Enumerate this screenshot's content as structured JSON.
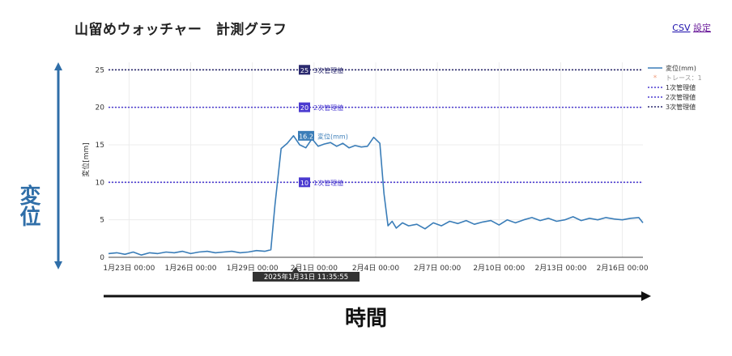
{
  "header": {
    "title": "山留めウォッチャー　計測グラフ",
    "links": {
      "csv": "CSV",
      "settings": "設定"
    }
  },
  "annotations": {
    "y_big_label": "変位",
    "x_big_label": "時間"
  },
  "tooltip": {
    "hover_x_label": "2025年1月31日 11:35:55"
  },
  "colors": {
    "series": "#3a7db8",
    "threshold": "#4b3bd0",
    "threshold_dark": "#2b2a6e",
    "big_arrow_vertical": "#2f6ea8",
    "big_arrow_horizontal": "#111111",
    "grid": "#ececec"
  },
  "chart_data": {
    "type": "line",
    "ylabel": "変位[mm]",
    "ylim": [
      0,
      26
    ],
    "xlim": [
      0,
      26
    ],
    "yticks": [
      0,
      5,
      10,
      15,
      20,
      25
    ],
    "x_ticks": [
      {
        "x": 1,
        "label": "1月23日 00:00"
      },
      {
        "x": 4,
        "label": "1月26日 00:00"
      },
      {
        "x": 7,
        "label": "1月29日 00:00"
      },
      {
        "x": 10,
        "label": "2月1日 00:00"
      },
      {
        "x": 13,
        "label": "2月4日 00:00"
      },
      {
        "x": 16,
        "label": "2月7日 00:00"
      },
      {
        "x": 19,
        "label": "2月10日 00:00"
      },
      {
        "x": 22,
        "label": "2月13日 00:00"
      },
      {
        "x": 25,
        "label": "2月16日 00:00"
      }
    ],
    "grid": true,
    "legend_position": "top-right",
    "legend": [
      {
        "label": "変位(mm)",
        "style": "line"
      },
      {
        "label": "トレース：1",
        "style": "marker"
      },
      {
        "label": "1次管理値",
        "style": "dotted-1"
      },
      {
        "label": "2次管理値",
        "style": "dotted-2"
      },
      {
        "label": "3次管理値",
        "style": "dotted-3"
      }
    ],
    "thresholds": [
      {
        "name": "1次管理値",
        "value": 10
      },
      {
        "name": "2次管理値",
        "value": 20
      },
      {
        "name": "3次管理値",
        "value": 25
      }
    ],
    "series": [
      {
        "name": "変位(mm)",
        "x": [
          0,
          0.4,
          0.8,
          1.2,
          1.6,
          2.0,
          2.4,
          2.8,
          3.2,
          3.6,
          4.0,
          4.4,
          4.8,
          5.2,
          5.6,
          6.0,
          6.4,
          6.8,
          7.2,
          7.6,
          7.9,
          8.1,
          8.4,
          8.7,
          9.0,
          9.3,
          9.6,
          9.9,
          10.2,
          10.5,
          10.8,
          11.1,
          11.4,
          11.7,
          12.0,
          12.3,
          12.6,
          12.9,
          13.2,
          13.4,
          13.6,
          13.8,
          14.0,
          14.3,
          14.6,
          15.0,
          15.4,
          15.8,
          16.2,
          16.6,
          17.0,
          17.4,
          17.8,
          18.2,
          18.6,
          19.0,
          19.4,
          19.8,
          20.2,
          20.6,
          21.0,
          21.4,
          21.8,
          22.2,
          22.6,
          23.0,
          23.4,
          23.8,
          24.2,
          24.6,
          25.0,
          25.4,
          25.8,
          26.0
        ],
        "values": [
          0.5,
          0.6,
          0.4,
          0.7,
          0.3,
          0.6,
          0.5,
          0.7,
          0.6,
          0.8,
          0.5,
          0.7,
          0.8,
          0.6,
          0.7,
          0.8,
          0.6,
          0.7,
          0.9,
          0.8,
          1.0,
          7.0,
          14.5,
          15.2,
          16.2,
          15.0,
          14.6,
          15.8,
          14.8,
          15.1,
          15.3,
          14.8,
          15.2,
          14.6,
          14.9,
          14.7,
          14.8,
          16.0,
          15.2,
          8.5,
          4.2,
          4.8,
          3.9,
          4.6,
          4.2,
          4.4,
          3.8,
          4.6,
          4.2,
          4.8,
          4.5,
          4.9,
          4.4,
          4.7,
          4.9,
          4.3,
          5.0,
          4.6,
          5.0,
          5.3,
          4.9,
          5.2,
          4.8,
          5.0,
          5.4,
          4.9,
          5.2,
          5.0,
          5.3,
          5.1,
          5.0,
          5.2,
          5.3,
          4.6
        ]
      }
    ]
  }
}
